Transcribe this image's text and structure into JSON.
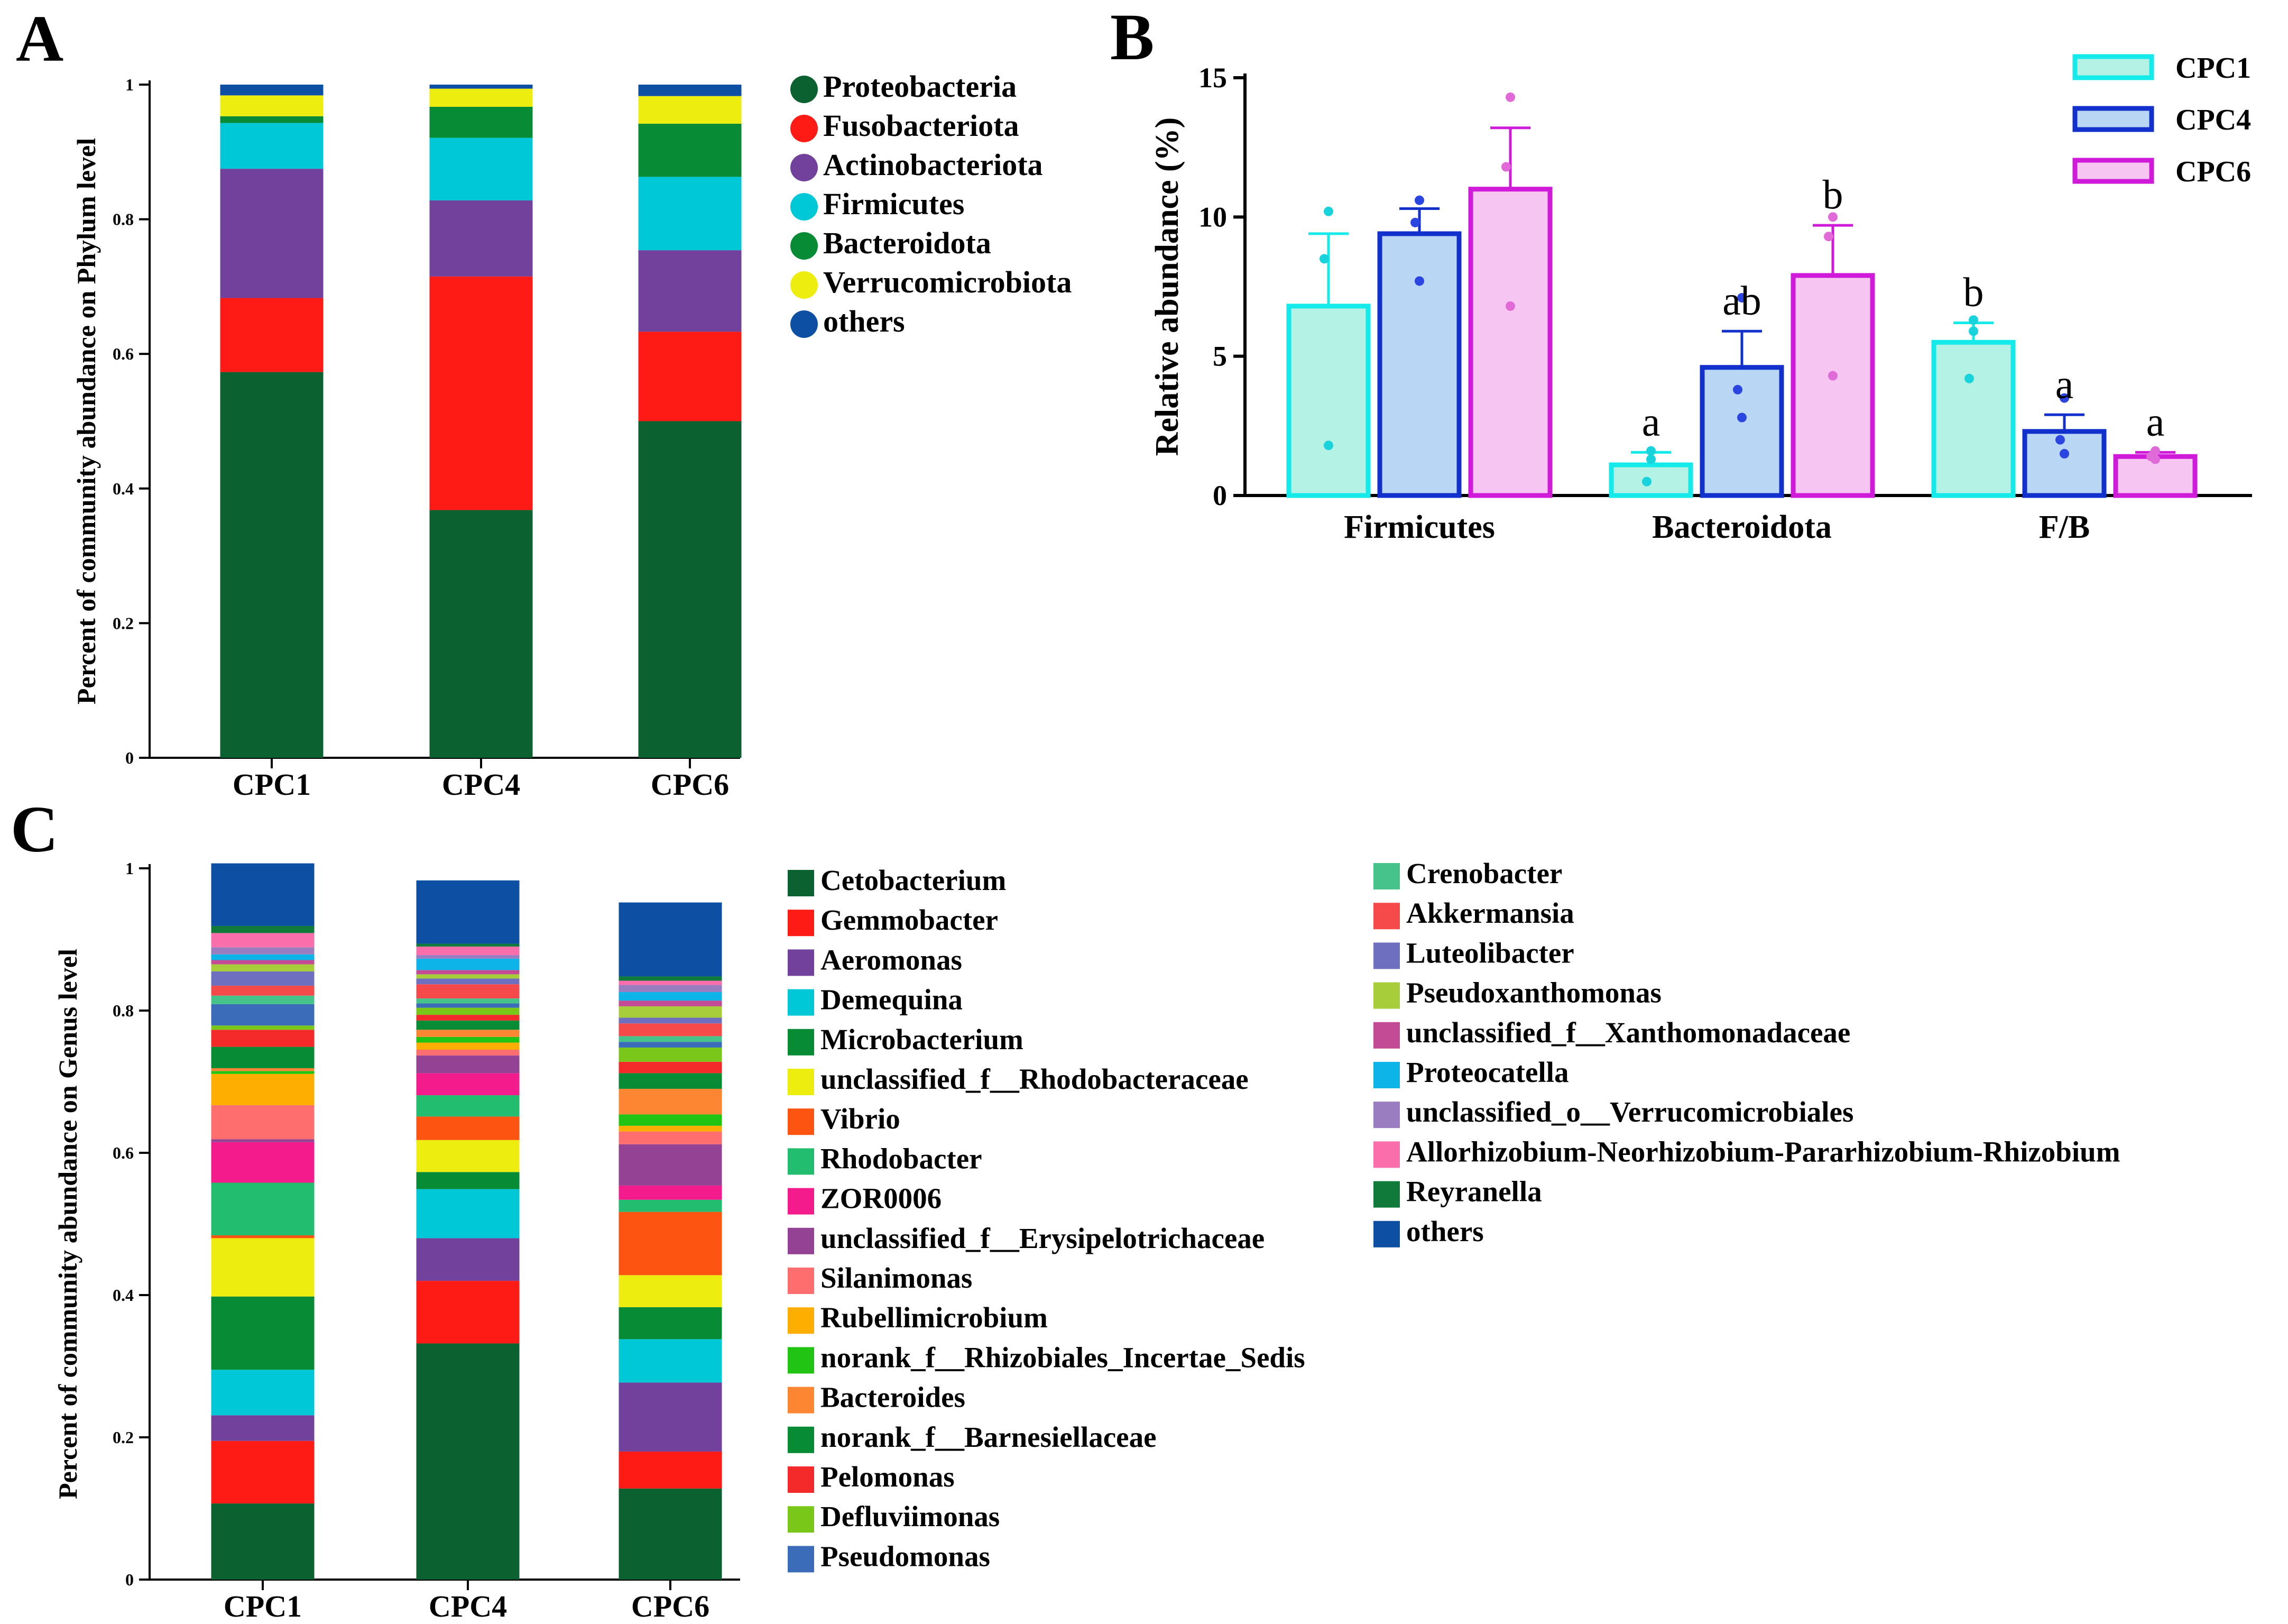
{
  "figure": {
    "panel_labels": [
      "A",
      "B",
      "C"
    ]
  },
  "chart_data": [
    {
      "panel": "A",
      "type": "bar",
      "stacked": true,
      "title": "",
      "xlabel": "",
      "ylabel": "Percent of community abundance on Phylum level",
      "ylim": [
        0,
        1
      ],
      "yticks": [
        0,
        0.2,
        0.4,
        0.6,
        0.8,
        1
      ],
      "ytick_labels": [
        "0",
        "0.2",
        "0.4",
        "0.6",
        "0.8",
        "1"
      ],
      "categories": [
        "CPC1",
        "CPC4",
        "CPC6"
      ],
      "legend_position": "right",
      "series": [
        {
          "name": "Proteobacteria",
          "color": "#0b6130",
          "values": [
            0.573,
            0.368,
            0.5
          ]
        },
        {
          "name": "Fusobacteriota",
          "color": "#fe1b16",
          "values": [
            0.11,
            0.347,
            0.133
          ]
        },
        {
          "name": "Actinobacteriota",
          "color": "#71419c",
          "values": [
            0.192,
            0.113,
            0.121
          ]
        },
        {
          "name": "Firmicutes",
          "color": "#00c8d6",
          "values": [
            0.068,
            0.093,
            0.109
          ]
        },
        {
          "name": "Bacteroidota",
          "color": "#078b35",
          "values": [
            0.01,
            0.046,
            0.079
          ]
        },
        {
          "name": "Verrucomicrobiota",
          "color": "#eded0f",
          "values": [
            0.031,
            0.027,
            0.041
          ]
        },
        {
          "name": "others",
          "color": "#0d4fa3",
          "values": [
            0.016,
            0.006,
            0.017
          ]
        }
      ]
    },
    {
      "panel": "B",
      "type": "bar",
      "grouped": true,
      "title": "",
      "xlabel": "",
      "ylabel": "Relative abundance (%)",
      "ylim": [
        0,
        15
      ],
      "yticks": [
        0,
        5,
        10,
        15
      ],
      "ytick_labels": [
        "0",
        "5",
        "10",
        "15"
      ],
      "categories": [
        "Firmicutes",
        "Bacteroidota",
        "F/B"
      ],
      "legend_position": "top-right",
      "series": [
        {
          "name": "CPC1",
          "stroke": "#14eaea",
          "fill": "#b5f2e6",
          "dot": "#18d3dc",
          "values": [
            6.8,
            1.1,
            5.5
          ],
          "errors": [
            2.6,
            0.45,
            0.7
          ],
          "points": [
            [
              10.2,
              8.5,
              1.8
            ],
            [
              1.6,
              0.5,
              1.3
            ],
            [
              6.3,
              4.2,
              5.9
            ]
          ],
          "sig": [
            "",
            "a",
            "b"
          ]
        },
        {
          "name": "CPC4",
          "stroke": "#1230cc",
          "fill": "#b9d6f4",
          "dot": "#2a45e0",
          "values": [
            9.4,
            4.6,
            2.3
          ],
          "errors": [
            0.9,
            1.3,
            0.6
          ],
          "points": [
            [
              10.6,
              9.8,
              7.7
            ],
            [
              7.1,
              3.8,
              2.8
            ],
            [
              3.5,
              2.0,
              1.5
            ]
          ],
          "sig": [
            "",
            "ab",
            "a"
          ]
        },
        {
          "name": "CPC6",
          "stroke": "#cf1ad9",
          "fill": "#f6c5f1",
          "dot": "#e06ad8",
          "values": [
            11.0,
            7.9,
            1.4
          ],
          "errors": [
            2.2,
            1.8,
            0.15
          ],
          "points": [
            [
              14.3,
              11.8,
              6.8
            ],
            [
              10.0,
              9.3,
              4.3
            ],
            [
              1.6,
              1.4,
              1.3
            ]
          ],
          "sig": [
            "",
            "b",
            "a"
          ]
        }
      ]
    },
    {
      "panel": "C",
      "type": "bar",
      "stacked": true,
      "title": "",
      "xlabel": "",
      "ylabel": "Percent of community abundance on Genus level",
      "ylim": [
        0,
        1
      ],
      "yticks": [
        0,
        0.2,
        0.4,
        0.6,
        0.8,
        1
      ],
      "ytick_labels": [
        "0",
        "0.2",
        "0.4",
        "0.6",
        "0.8",
        "1"
      ],
      "categories": [
        "CPC1",
        "CPC4",
        "CPC6"
      ],
      "legend_position": "right",
      "legend_columns": 2,
      "series": [
        {
          "name": "Cetobacterium",
          "color": "#0b6130",
          "values": [
            0.107,
            0.332,
            0.128
          ]
        },
        {
          "name": "Gemmobacter",
          "color": "#fe1b16",
          "values": [
            0.088,
            0.088,
            0.052
          ]
        },
        {
          "name": "Aeromonas",
          "color": "#71419c",
          "values": [
            0.036,
            0.06,
            0.097
          ]
        },
        {
          "name": "Demequina",
          "color": "#00c8d6",
          "values": [
            0.064,
            0.069,
            0.061
          ]
        },
        {
          "name": "Microbacterium",
          "color": "#078b35",
          "values": [
            0.103,
            0.024,
            0.045
          ]
        },
        {
          "name": "unclassified_f__Rhodobacteraceae",
          "color": "#eded0f",
          "values": [
            0.082,
            0.045,
            0.045
          ]
        },
        {
          "name": "Vibrio",
          "color": "#fd5411",
          "values": [
            0.004,
            0.033,
            0.089
          ]
        },
        {
          "name": "Rhodobacter",
          "color": "#23bd6f",
          "values": [
            0.074,
            0.03,
            0.017
          ]
        },
        {
          "name": "ZOR0006",
          "color": "#f41c8d",
          "values": [
            0.057,
            0.031,
            0.02
          ]
        },
        {
          "name": "unclassified_f__Erysipelotrichaceae",
          "color": "#944294",
          "values": [
            0.004,
            0.025,
            0.058
          ]
        },
        {
          "name": "Silanimonas",
          "color": "#fe6e6e",
          "values": [
            0.048,
            0.008,
            0.018
          ]
        },
        {
          "name": "Rubellimicrobium",
          "color": "#feae00",
          "values": [
            0.044,
            0.01,
            0.008
          ]
        },
        {
          "name": "norank_f__Rhizobiales_Incertae_Sedis",
          "color": "#22c414",
          "values": [
            0.004,
            0.008,
            0.016
          ]
        },
        {
          "name": "Bacteroides",
          "color": "#fd8633",
          "values": [
            0.004,
            0.01,
            0.036
          ]
        },
        {
          "name": "norank_f__Barnesiellaceae",
          "color": "#078b35",
          "values": [
            0.03,
            0.013,
            0.022
          ]
        },
        {
          "name": "Pelomonas",
          "color": "#f42a2a",
          "values": [
            0.024,
            0.008,
            0.016
          ]
        },
        {
          "name": "Defluviimonas",
          "color": "#79c819",
          "values": [
            0.006,
            0.01,
            0.02
          ]
        },
        {
          "name": "Pseudomonas",
          "color": "#3a6cba",
          "values": [
            0.03,
            0.006,
            0.008
          ]
        },
        {
          "name": "Crenobacter",
          "color": "#46c28b",
          "values": [
            0.012,
            0.007,
            0.008
          ]
        },
        {
          "name": "Akkermansia",
          "color": "#f64a4a",
          "values": [
            0.014,
            0.02,
            0.018
          ]
        },
        {
          "name": "Luteolibacter",
          "color": "#6f6fc0",
          "values": [
            0.02,
            0.008,
            0.008
          ]
        },
        {
          "name": "Pseudoxanthomonas",
          "color": "#a7cd3a",
          "values": [
            0.01,
            0.006,
            0.016
          ]
        },
        {
          "name": "unclassified_f__Xanthomonadaceae",
          "color": "#c34b95",
          "values": [
            0.006,
            0.006,
            0.008
          ]
        },
        {
          "name": "Proteocatella",
          "color": "#0cb4e8",
          "values": [
            0.008,
            0.016,
            0.012
          ]
        },
        {
          "name": "unclassified_o__Verrucomicrobiales",
          "color": "#9a7cc0",
          "values": [
            0.01,
            0.005,
            0.01
          ]
        },
        {
          "name": "Allorhizobium-Neorhizobium-Pararhizobium-Rhizobium",
          "color": "#fa6eac",
          "values": [
            0.02,
            0.012,
            0.006
          ]
        },
        {
          "name": "Reyranella",
          "color": "#0f7a3a",
          "values": [
            0.01,
            0.004,
            0.006
          ]
        },
        {
          "name": "others",
          "color": "#0d4fa3",
          "values": [
            0.088,
            0.089,
            0.104
          ]
        }
      ]
    }
  ]
}
